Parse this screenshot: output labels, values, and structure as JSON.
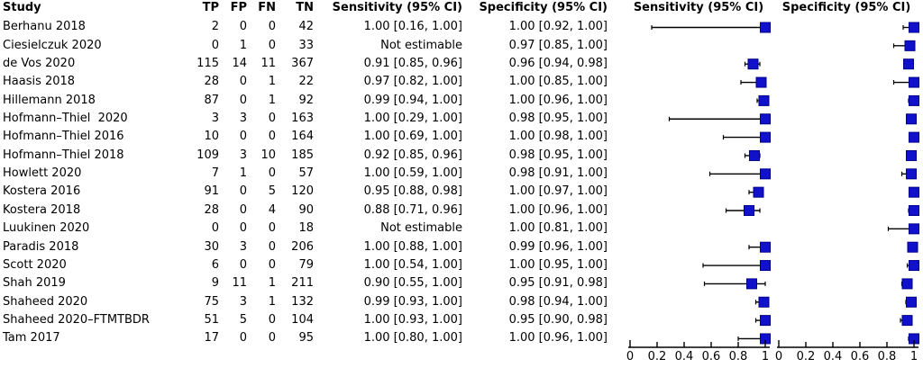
{
  "colors": {
    "background": "#ffffff",
    "text": "#000000",
    "ci_line": "#000000",
    "marker_fill": "#1111cc",
    "marker_stroke": "#000088",
    "axis": "#000000"
  },
  "table": {
    "headers": {
      "study": "Study",
      "tp": "TP",
      "fp": "FP",
      "fn": "FN",
      "tn": "TN",
      "sens": "Sensitivity (95% CI)",
      "spec": "Specificity (95% CI)"
    }
  },
  "chart_data": {
    "type": "forest",
    "description": "Paired forest plot of diagnostic test accuracy (sensitivity and specificity with 95% CI) per study",
    "panels": [
      {
        "title": "Sensitivity (95% CI)",
        "xlim": [
          0,
          1
        ],
        "ticks": [
          "0",
          "0.2",
          "0.4",
          "0.6",
          "0.8",
          "1"
        ]
      },
      {
        "title": "Specificity (95% CI)",
        "xlim": [
          0,
          1
        ],
        "ticks": [
          "0",
          "0.2",
          "0.4",
          "0.6",
          "0.8",
          "1"
        ]
      }
    ],
    "rows": [
      {
        "study": "Berhanu 2018",
        "tp": "2",
        "fp": "0",
        "fn": "0",
        "tn": "42",
        "sens_label": "1.00 [0.16, 1.00]",
        "spec_label": "1.00 [0.92, 1.00]",
        "sens": {
          "est": 1.0,
          "lo": 0.16,
          "hi": 1.0
        },
        "spec": {
          "est": 1.0,
          "lo": 0.92,
          "hi": 1.0
        }
      },
      {
        "study": "Ciesielczuk 2020",
        "tp": "0",
        "fp": "1",
        "fn": "0",
        "tn": "33",
        "sens_label": "Not estimable",
        "spec_label": "0.97 [0.85, 1.00]",
        "sens": null,
        "spec": {
          "est": 0.97,
          "lo": 0.85,
          "hi": 1.0
        }
      },
      {
        "study": "de Vos 2020",
        "tp": "115",
        "fp": "14",
        "fn": "11",
        "tn": "367",
        "sens_label": "0.91 [0.85, 0.96]",
        "spec_label": "0.96 [0.94, 0.98]",
        "sens": {
          "est": 0.91,
          "lo": 0.85,
          "hi": 0.96
        },
        "spec": {
          "est": 0.96,
          "lo": 0.94,
          "hi": 0.98
        }
      },
      {
        "study": "Haasis 2018",
        "tp": "28",
        "fp": "0",
        "fn": "1",
        "tn": "22",
        "sens_label": "0.97 [0.82, 1.00]",
        "spec_label": "1.00 [0.85, 1.00]",
        "sens": {
          "est": 0.97,
          "lo": 0.82,
          "hi": 1.0
        },
        "spec": {
          "est": 1.0,
          "lo": 0.85,
          "hi": 1.0
        }
      },
      {
        "study": "Hillemann 2018",
        "tp": "87",
        "fp": "0",
        "fn": "1",
        "tn": "92",
        "sens_label": "0.99 [0.94, 1.00]",
        "spec_label": "1.00 [0.96, 1.00]",
        "sens": {
          "est": 0.99,
          "lo": 0.94,
          "hi": 1.0
        },
        "spec": {
          "est": 1.0,
          "lo": 0.96,
          "hi": 1.0
        }
      },
      {
        "study": "Hofmann–Thiel  2020",
        "tp": "3",
        "fp": "3",
        "fn": "0",
        "tn": "163",
        "sens_label": "1.00 [0.29, 1.00]",
        "spec_label": "0.98 [0.95, 1.00]",
        "sens": {
          "est": 1.0,
          "lo": 0.29,
          "hi": 1.0
        },
        "spec": {
          "est": 0.98,
          "lo": 0.95,
          "hi": 1.0
        }
      },
      {
        "study": "Hofmann–Thiel 2016",
        "tp": "10",
        "fp": "0",
        "fn": "0",
        "tn": "164",
        "sens_label": "1.00 [0.69, 1.00]",
        "spec_label": "1.00 [0.98, 1.00]",
        "sens": {
          "est": 1.0,
          "lo": 0.69,
          "hi": 1.0
        },
        "spec": {
          "est": 1.0,
          "lo": 0.98,
          "hi": 1.0
        }
      },
      {
        "study": "Hofmann–Thiel 2018",
        "tp": "109",
        "fp": "3",
        "fn": "10",
        "tn": "185",
        "sens_label": "0.92 [0.85, 0.96]",
        "spec_label": "0.98 [0.95, 1.00]",
        "sens": {
          "est": 0.92,
          "lo": 0.85,
          "hi": 0.96
        },
        "spec": {
          "est": 0.98,
          "lo": 0.95,
          "hi": 1.0
        }
      },
      {
        "study": "Howlett 2020",
        "tp": "7",
        "fp": "1",
        "fn": "0",
        "tn": "57",
        "sens_label": "1.00 [0.59, 1.00]",
        "spec_label": "0.98 [0.91, 1.00]",
        "sens": {
          "est": 1.0,
          "lo": 0.59,
          "hi": 1.0
        },
        "spec": {
          "est": 0.98,
          "lo": 0.91,
          "hi": 1.0
        }
      },
      {
        "study": "Kostera 2016",
        "tp": "91",
        "fp": "0",
        "fn": "5",
        "tn": "120",
        "sens_label": "0.95 [0.88, 0.98]",
        "spec_label": "1.00 [0.97, 1.00]",
        "sens": {
          "est": 0.95,
          "lo": 0.88,
          "hi": 0.98
        },
        "spec": {
          "est": 1.0,
          "lo": 0.97,
          "hi": 1.0
        }
      },
      {
        "study": "Kostera 2018",
        "tp": "28",
        "fp": "0",
        "fn": "4",
        "tn": "90",
        "sens_label": "0.88 [0.71, 0.96]",
        "spec_label": "1.00 [0.96, 1.00]",
        "sens": {
          "est": 0.88,
          "lo": 0.71,
          "hi": 0.96
        },
        "spec": {
          "est": 1.0,
          "lo": 0.96,
          "hi": 1.0
        }
      },
      {
        "study": "Luukinen 2020",
        "tp": "0",
        "fp": "0",
        "fn": "0",
        "tn": "18",
        "sens_label": "Not estimable",
        "spec_label": "1.00 [0.81, 1.00]",
        "sens": null,
        "spec": {
          "est": 1.0,
          "lo": 0.81,
          "hi": 1.0
        }
      },
      {
        "study": "Paradis 2018",
        "tp": "30",
        "fp": "3",
        "fn": "0",
        "tn": "206",
        "sens_label": "1.00 [0.88, 1.00]",
        "spec_label": "0.99 [0.96, 1.00]",
        "sens": {
          "est": 1.0,
          "lo": 0.88,
          "hi": 1.0
        },
        "spec": {
          "est": 0.99,
          "lo": 0.96,
          "hi": 1.0
        }
      },
      {
        "study": "Scott 2020",
        "tp": "6",
        "fp": "0",
        "fn": "0",
        "tn": "79",
        "sens_label": "1.00 [0.54, 1.00]",
        "spec_label": "1.00 [0.95, 1.00]",
        "sens": {
          "est": 1.0,
          "lo": 0.54,
          "hi": 1.0
        },
        "spec": {
          "est": 1.0,
          "lo": 0.95,
          "hi": 1.0
        }
      },
      {
        "study": "Shah 2019",
        "tp": "9",
        "fp": "11",
        "fn": "1",
        "tn": "211",
        "sens_label": "0.90 [0.55, 1.00]",
        "spec_label": "0.95 [0.91, 0.98]",
        "sens": {
          "est": 0.9,
          "lo": 0.55,
          "hi": 1.0
        },
        "spec": {
          "est": 0.95,
          "lo": 0.91,
          "hi": 0.98
        }
      },
      {
        "study": "Shaheed 2020",
        "tp": "75",
        "fp": "3",
        "fn": "1",
        "tn": "132",
        "sens_label": "0.99 [0.93, 1.00]",
        "spec_label": "0.98 [0.94, 1.00]",
        "sens": {
          "est": 0.99,
          "lo": 0.93,
          "hi": 1.0
        },
        "spec": {
          "est": 0.98,
          "lo": 0.94,
          "hi": 1.0
        }
      },
      {
        "study": "Shaheed 2020–FTMTBDR",
        "tp": "51",
        "fp": "5",
        "fn": "0",
        "tn": "104",
        "sens_label": "1.00 [0.93, 1.00]",
        "spec_label": "0.95 [0.90, 0.98]",
        "sens": {
          "est": 1.0,
          "lo": 0.93,
          "hi": 1.0
        },
        "spec": {
          "est": 0.95,
          "lo": 0.9,
          "hi": 0.98
        }
      },
      {
        "study": "Tam 2017",
        "tp": "17",
        "fp": "0",
        "fn": "0",
        "tn": "95",
        "sens_label": "1.00 [0.80, 1.00]",
        "spec_label": "1.00 [0.96, 1.00]",
        "sens": {
          "est": 1.0,
          "lo": 0.8,
          "hi": 1.0
        },
        "spec": {
          "est": 1.0,
          "lo": 0.96,
          "hi": 1.0
        }
      }
    ]
  }
}
